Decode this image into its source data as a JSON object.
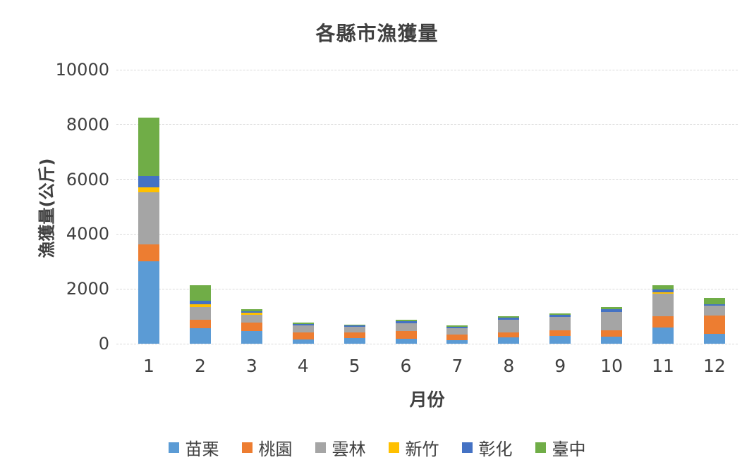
{
  "title": "各縣市漁獲量",
  "chart_data": {
    "type": "bar",
    "stacked": true,
    "title": "各縣市漁獲量",
    "xlabel": "月份",
    "ylabel": "漁獲量(公斤)",
    "categories": [
      "1",
      "2",
      "3",
      "4",
      "5",
      "6",
      "7",
      "8",
      "9",
      "10",
      "11",
      "12"
    ],
    "series": [
      {
        "name": "苗栗",
        "color": "#5B9BD5",
        "values": [
          3000,
          560,
          470,
          150,
          210,
          190,
          140,
          225,
          280,
          250,
          580,
          370
        ]
      },
      {
        "name": "桃園",
        "color": "#ED7D31",
        "values": [
          620,
          320,
          290,
          270,
          190,
          280,
          200,
          185,
          220,
          240,
          420,
          650
        ]
      },
      {
        "name": "雲林",
        "color": "#A5A5A5",
        "values": [
          1900,
          460,
          290,
          240,
          210,
          270,
          220,
          470,
          480,
          680,
          820,
          380
        ]
      },
      {
        "name": "新竹",
        "color": "#FFC000",
        "values": [
          200,
          100,
          70,
          0,
          0,
          0,
          0,
          0,
          0,
          0,
          50,
          0
        ]
      },
      {
        "name": "彰化",
        "color": "#4472C4",
        "values": [
          400,
          130,
          70,
          70,
          50,
          90,
          70,
          60,
          85,
          85,
          120,
          40
        ]
      },
      {
        "name": "臺中",
        "color": "#70AD47",
        "values": [
          2130,
          560,
          80,
          50,
          40,
          40,
          50,
          65,
          45,
          95,
          150,
          240
        ]
      }
    ],
    "totals": [
      8250,
      2130,
      1270,
      780,
      700,
      870,
      680,
      1005,
      1110,
      1350,
      2140,
      1680
    ],
    "ylim": [
      0,
      10000
    ],
    "ytick_interval": 2000,
    "yticks": [
      "0",
      "2000",
      "4000",
      "6000",
      "8000",
      "10000"
    ],
    "grid": true,
    "gridline_style": "dashed",
    "legend_position": "bottom"
  },
  "colors": {
    "background": "#FFFFFF",
    "text": "#404040",
    "gridline": "#D9D9D9"
  }
}
